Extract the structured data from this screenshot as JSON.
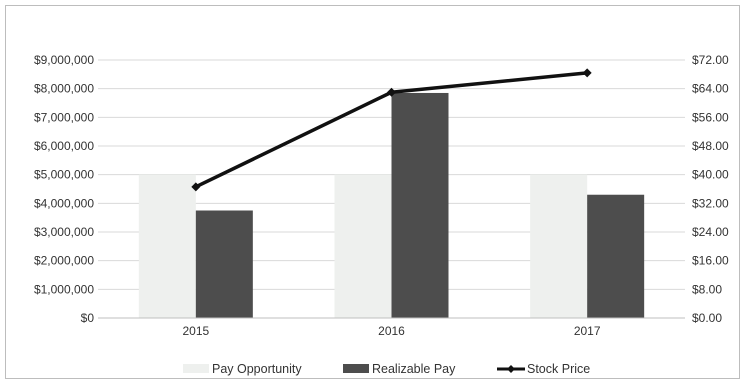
{
  "chart_data": {
    "type": "bar",
    "categories": [
      "2015",
      "2016",
      "2017"
    ],
    "series": [
      {
        "name": "Pay Opportunity",
        "kind": "bar",
        "axis": "left",
        "color": "#eef0ee",
        "values": [
          5000000,
          5000000,
          5000000
        ]
      },
      {
        "name": "Realizable Pay",
        "kind": "bar",
        "axis": "left",
        "color": "#4d4d4d",
        "values": [
          3750000,
          7850000,
          4300000
        ]
      },
      {
        "name": "Stock Price",
        "kind": "line",
        "axis": "right",
        "color": "#111111",
        "values": [
          36.6,
          63.0,
          68.4
        ]
      }
    ],
    "y_left": {
      "ylim": [
        0,
        9000000
      ],
      "tick_labels": [
        "$0",
        "$1,000,000",
        "$2,000,000",
        "$3,000,000",
        "$4,000,000",
        "$5,000,000",
        "$6,000,000",
        "$7,000,000",
        "$8,000,000",
        "$9,000,000"
      ]
    },
    "y_right": {
      "ylim": [
        0,
        72
      ],
      "tick_labels": [
        "$0.00",
        "$8.00",
        "$16.00",
        "$24.00",
        "$32.00",
        "$40.00",
        "$48.00",
        "$56.00",
        "$64.00",
        "$72.00"
      ]
    },
    "grid": true,
    "legend_position": "bottom"
  }
}
